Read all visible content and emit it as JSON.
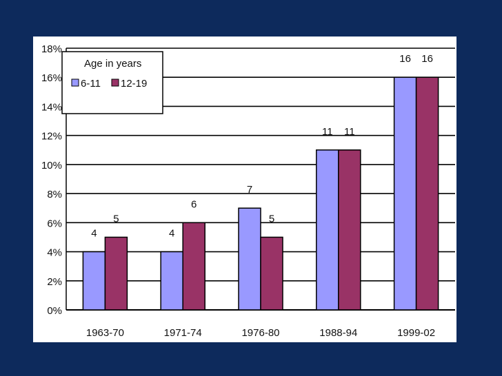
{
  "chart_data": {
    "type": "bar",
    "categories": [
      "1963-70",
      "1971-74",
      "1976-80",
      "1988-94",
      "1999-02"
    ],
    "series": [
      {
        "name": "6-11",
        "values": [
          4,
          4,
          7,
          11,
          16
        ],
        "color": "#9999ff"
      },
      {
        "name": "12-19",
        "values": [
          5,
          6,
          5,
          11,
          16
        ],
        "color": "#993366"
      }
    ],
    "data_labels": {
      "6-11": [
        "4",
        "4",
        "7",
        "11",
        "16"
      ],
      "12-19": [
        "5",
        "6",
        "5",
        "11",
        "16"
      ]
    },
    "y_ticks": [
      "0%",
      "2%",
      "4%",
      "6%",
      "8%",
      "10%",
      "12%",
      "14%",
      "16%",
      "18%"
    ],
    "ylim": [
      0,
      18
    ],
    "grid": true,
    "legend": {
      "title": "Age in years",
      "placement": "top-left"
    },
    "title": "",
    "xlabel": "",
    "ylabel": ""
  },
  "colors": {
    "background": "#0d2a5c",
    "panel": "#ffffff",
    "grid": "#000000"
  }
}
